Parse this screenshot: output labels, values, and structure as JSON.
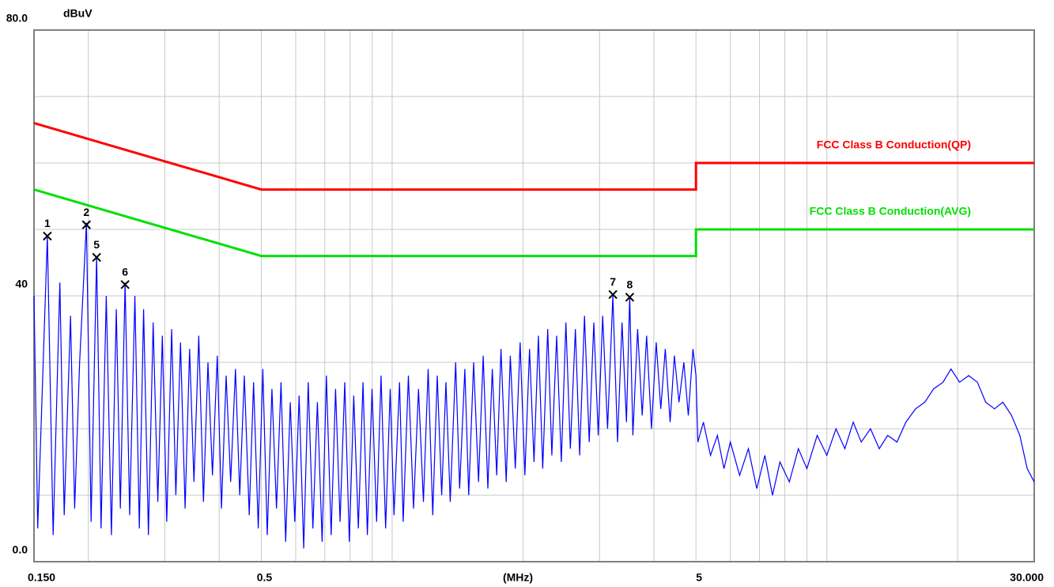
{
  "chart_data": {
    "type": "line",
    "y_unit": "dBuV",
    "x_label": "(MHz)",
    "log_x": true,
    "xlim": [
      0.15,
      30
    ],
    "ylim": [
      0,
      80
    ],
    "xticks": [
      {
        "value": 0.15,
        "label": "0.150"
      },
      0.5,
      5,
      {
        "value": 30,
        "label": "30.000"
      }
    ],
    "yticks": [
      {
        "value": 0,
        "label": "0.0"
      },
      40,
      {
        "value": 80,
        "label": "80.0"
      }
    ],
    "xgrid": [
      0.2,
      0.3,
      0.4,
      0.6,
      0.7,
      0.8,
      0.9,
      1,
      2,
      3,
      4,
      6,
      7,
      8,
      9,
      10,
      20
    ],
    "ygrid": [
      10,
      20,
      30,
      50,
      60,
      70
    ],
    "series": [
      {
        "name": "FCC Class B Conduction(QP)",
        "color": "#ff0000",
        "x": [
          0.15,
          0.5,
          5,
          5,
          30
        ],
        "values": [
          66,
          56,
          56,
          60,
          60
        ]
      },
      {
        "name": "FCC Class B Conduction(AVG)",
        "color": "#00e000",
        "x": [
          0.15,
          0.5,
          5,
          5,
          30
        ],
        "values": [
          56,
          46,
          46,
          50,
          50
        ]
      },
      {
        "color": "#0000ff",
        "x": [
          0.15,
          0.153,
          0.161,
          0.166,
          0.172,
          0.176,
          0.182,
          0.186,
          0.191,
          0.198,
          0.203,
          0.209,
          0.214,
          0.22,
          0.226,
          0.232,
          0.237,
          0.243,
          0.249,
          0.256,
          0.262,
          0.268,
          0.275,
          0.282,
          0.289,
          0.296,
          0.303,
          0.311,
          0.318,
          0.326,
          0.334,
          0.342,
          0.35,
          0.359,
          0.368,
          0.377,
          0.386,
          0.396,
          0.405,
          0.415,
          0.425,
          0.436,
          0.446,
          0.457,
          0.469,
          0.48,
          0.492,
          0.504,
          0.516,
          0.529,
          0.542,
          0.555,
          0.569,
          0.583,
          0.597,
          0.611,
          0.626,
          0.641,
          0.657,
          0.673,
          0.69,
          0.706,
          0.724,
          0.741,
          0.759,
          0.778,
          0.797,
          0.816,
          0.836,
          0.857,
          0.877,
          0.899,
          0.921,
          0.943,
          0.966,
          0.99,
          1.01,
          1.04,
          1.06,
          1.09,
          1.12,
          1.15,
          1.18,
          1.21,
          1.24,
          1.27,
          1.3,
          1.33,
          1.36,
          1.4,
          1.43,
          1.47,
          1.5,
          1.54,
          1.58,
          1.62,
          1.66,
          1.7,
          1.74,
          1.78,
          1.83,
          1.87,
          1.92,
          1.97,
          2.02,
          2.07,
          2.12,
          2.17,
          2.22,
          2.28,
          2.33,
          2.39,
          2.45,
          2.51,
          2.57,
          2.64,
          2.7,
          2.77,
          2.84,
          2.91,
          2.98,
          3.05,
          3.13,
          3.22,
          3.3,
          3.38,
          3.46,
          3.52,
          3.58,
          3.67,
          3.76,
          3.85,
          3.95,
          4.05,
          4.15,
          4.25,
          4.36,
          4.46,
          4.57,
          4.69,
          4.8,
          4.92,
          5.0,
          5.05,
          5.2,
          5.4,
          5.6,
          5.8,
          6.0,
          6.3,
          6.6,
          6.9,
          7.2,
          7.5,
          7.8,
          8.2,
          8.6,
          9.0,
          9.5,
          10.0,
          10.5,
          11.0,
          11.5,
          12.0,
          12.6,
          13.2,
          13.8,
          14.5,
          15.2,
          16.0,
          16.8,
          17.6,
          18.5,
          19.3,
          20.2,
          21.2,
          22.2,
          23.2,
          24.3,
          25.4,
          26.6,
          27.8,
          28.9,
          30.0
        ],
        "values": [
          40,
          5,
          49,
          4,
          42,
          7,
          37,
          8,
          30,
          51,
          6,
          46,
          5,
          40,
          4,
          38,
          8,
          42,
          7,
          40,
          5,
          38,
          4,
          36,
          9,
          34,
          6,
          35,
          10,
          33,
          8,
          32,
          12,
          34,
          9,
          30,
          13,
          31,
          8,
          28,
          12,
          29,
          10,
          28,
          7,
          27,
          5,
          29,
          4,
          26,
          8,
          27,
          3,
          24,
          6,
          25,
          2,
          27,
          5,
          24,
          3,
          28,
          4,
          26,
          6,
          27,
          3,
          25,
          5,
          27,
          4,
          26,
          6,
          28,
          5,
          26,
          7,
          27,
          6,
          28,
          8,
          26,
          9,
          29,
          7,
          28,
          10,
          27,
          9,
          30,
          11,
          29,
          10,
          30,
          12,
          31,
          11,
          29,
          13,
          32,
          12,
          31,
          14,
          33,
          13,
          32,
          15,
          34,
          14,
          35,
          16,
          34,
          15,
          36,
          17,
          35,
          16,
          37,
          18,
          36,
          19,
          37,
          20,
          40,
          18,
          36,
          21,
          40,
          19,
          35,
          22,
          34,
          20,
          33,
          23,
          32,
          21,
          31,
          24,
          30,
          22,
          32,
          28,
          18,
          21,
          16,
          19,
          14,
          18,
          13,
          17,
          11,
          16,
          10,
          15,
          12,
          17,
          14,
          19,
          16,
          20,
          17,
          21,
          18,
          20,
          17,
          19,
          18,
          21,
          23,
          24,
          26,
          27,
          29,
          27,
          28,
          27,
          24,
          23,
          24,
          22,
          19,
          14,
          12
        ]
      }
    ],
    "markers": [
      {
        "label": "1",
        "x": 0.161,
        "y": 49.0
      },
      {
        "label": "2",
        "x": 0.198,
        "y": 50.7
      },
      {
        "label": "5",
        "x": 0.209,
        "y": 45.8
      },
      {
        "label": "6",
        "x": 0.243,
        "y": 41.7
      },
      {
        "label": "7",
        "x": 3.22,
        "y": 40.2
      },
      {
        "label": "8",
        "x": 3.52,
        "y": 39.8
      }
    ]
  }
}
